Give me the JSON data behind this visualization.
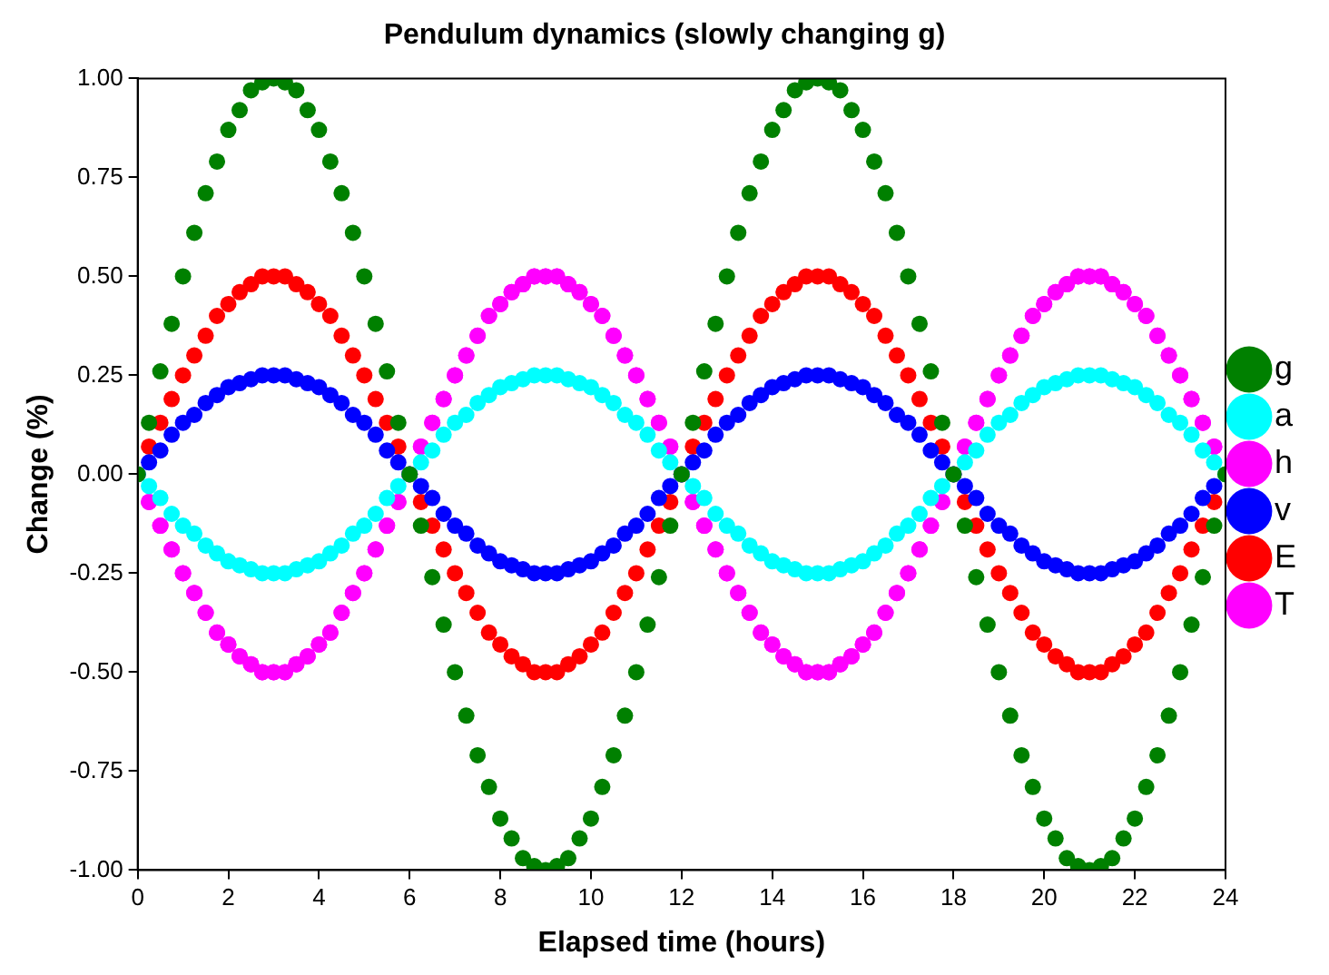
{
  "chart_data": {
    "type": "scatter",
    "title": "Pendulum dynamics (slowly changing g)",
    "xlabel": "Elapsed time (hours)",
    "ylabel": "Change (%)",
    "marker": "circle",
    "legend": "right",
    "xlim": [
      0,
      24
    ],
    "xticks": [
      0,
      2,
      4,
      6,
      8,
      10,
      12,
      14,
      16,
      18,
      20,
      22,
      24
    ],
    "ylim": [
      -1,
      1
    ],
    "yticks": [
      {
        "value": -1,
        "label": "-1.00"
      },
      {
        "value": -0.75,
        "label": "-0.75"
      },
      {
        "value": -0.5,
        "label": "-0.50"
      },
      {
        "value": -0.25,
        "label": "-0.25"
      },
      {
        "value": 0,
        "label": "0.00"
      },
      {
        "value": 0.25,
        "label": "0.25"
      },
      {
        "value": 0.5,
        "label": "0.50"
      },
      {
        "value": 0.75,
        "label": "0.75"
      },
      {
        "value": 1,
        "label": "1.00"
      }
    ],
    "x": [
      0,
      0.25,
      0.5,
      0.75,
      1,
      1.25,
      1.5,
      1.75,
      2,
      2.25,
      2.5,
      2.75,
      3,
      3.25,
      3.5,
      3.75,
      4,
      4.25,
      4.5,
      4.75,
      5,
      5.25,
      5.5,
      5.75,
      6,
      6.25,
      6.5,
      6.75,
      7,
      7.25,
      7.5,
      7.75,
      8,
      8.25,
      8.5,
      8.75,
      9,
      9.25,
      9.5,
      9.75,
      10,
      10.25,
      10.5,
      10.75,
      11,
      11.25,
      11.5,
      11.75,
      12,
      12.25,
      12.5,
      12.75,
      13,
      13.25,
      13.5,
      13.75,
      14,
      14.25,
      14.5,
      14.75,
      15,
      15.25,
      15.5,
      15.75,
      16,
      16.25,
      16.5,
      16.75,
      17,
      17.25,
      17.5,
      17.75,
      18,
      18.25,
      18.5,
      18.75,
      19,
      19.25,
      19.5,
      19.75,
      20,
      20.25,
      20.5,
      20.75,
      21,
      21.25,
      21.5,
      21.75,
      22,
      22.25,
      22.5,
      22.75,
      23,
      23.25,
      23.5,
      23.75,
      24
    ],
    "series": [
      {
        "name": "g",
        "color": "#008000",
        "values": [
          0,
          0.13,
          0.26,
          0.38,
          0.5,
          0.61,
          0.71,
          0.79,
          0.87,
          0.92,
          0.97,
          0.99,
          1,
          0.99,
          0.97,
          0.92,
          0.87,
          0.79,
          0.71,
          0.61,
          0.5,
          0.38,
          0.26,
          0.13,
          0,
          -0.13,
          -0.26,
          -0.38,
          -0.5,
          -0.61,
          -0.71,
          -0.79,
          -0.87,
          -0.92,
          -0.97,
          -0.99,
          -1,
          -0.99,
          -0.97,
          -0.92,
          -0.87,
          -0.79,
          -0.71,
          -0.61,
          -0.5,
          -0.38,
          -0.26,
          -0.13,
          0,
          0.13,
          0.26,
          0.38,
          0.5,
          0.61,
          0.71,
          0.79,
          0.87,
          0.92,
          0.97,
          0.99,
          1,
          0.99,
          0.97,
          0.92,
          0.87,
          0.79,
          0.71,
          0.61,
          0.5,
          0.38,
          0.26,
          0.13,
          0,
          -0.13,
          -0.26,
          -0.38,
          -0.5,
          -0.61,
          -0.71,
          -0.79,
          -0.87,
          -0.92,
          -0.97,
          -0.99,
          -1,
          -0.99,
          -0.97,
          -0.92,
          -0.87,
          -0.79,
          -0.71,
          -0.61,
          -0.5,
          -0.38,
          -0.26,
          -0.13,
          0
        ]
      },
      {
        "name": "a",
        "color": "#00ffff",
        "values": [
          0,
          -0.03,
          -0.06,
          -0.1,
          -0.13,
          -0.15,
          -0.18,
          -0.2,
          -0.22,
          -0.23,
          -0.24,
          -0.25,
          -0.25,
          -0.25,
          -0.24,
          -0.23,
          -0.22,
          -0.2,
          -0.18,
          -0.15,
          -0.13,
          -0.1,
          -0.06,
          -0.03,
          0,
          0.03,
          0.06,
          0.1,
          0.13,
          0.15,
          0.18,
          0.2,
          0.22,
          0.23,
          0.24,
          0.25,
          0.25,
          0.25,
          0.24,
          0.23,
          0.22,
          0.2,
          0.18,
          0.15,
          0.13,
          0.1,
          0.06,
          0.03,
          0,
          -0.03,
          -0.06,
          -0.1,
          -0.13,
          -0.15,
          -0.18,
          -0.2,
          -0.22,
          -0.23,
          -0.24,
          -0.25,
          -0.25,
          -0.25,
          -0.24,
          -0.23,
          -0.22,
          -0.2,
          -0.18,
          -0.15,
          -0.13,
          -0.1,
          -0.06,
          -0.03,
          0,
          0.03,
          0.06,
          0.1,
          0.13,
          0.15,
          0.18,
          0.2,
          0.22,
          0.23,
          0.24,
          0.25,
          0.25,
          0.25,
          0.24,
          0.23,
          0.22,
          0.2,
          0.18,
          0.15,
          0.13,
          0.1,
          0.06,
          0.03,
          0
        ]
      },
      {
        "name": "h",
        "color": "#ff00ff",
        "values": [
          null,
          -0.07,
          -0.13,
          -0.19,
          -0.25,
          -0.3,
          -0.35,
          -0.4,
          -0.43,
          -0.46,
          -0.48,
          -0.5,
          -0.5,
          -0.5,
          -0.48,
          -0.46,
          -0.43,
          -0.4,
          -0.35,
          -0.3,
          -0.25,
          -0.19,
          -0.13,
          -0.07,
          0,
          0.07,
          0.13,
          0.19,
          0.25,
          0.3,
          0.35,
          0.4,
          0.43,
          0.46,
          0.48,
          0.5,
          0.5,
          0.5,
          0.48,
          0.46,
          0.43,
          0.4,
          0.35,
          0.3,
          0.25,
          0.19,
          0.13,
          0.07,
          0,
          -0.07,
          -0.13,
          -0.19,
          -0.25,
          -0.3,
          -0.35,
          -0.4,
          -0.43,
          -0.46,
          -0.48,
          -0.5,
          -0.5,
          -0.5,
          -0.48,
          -0.46,
          -0.43,
          -0.4,
          -0.35,
          -0.3,
          -0.25,
          -0.19,
          -0.13,
          -0.07,
          0,
          0.07,
          0.13,
          0.19,
          0.25,
          0.3,
          0.35,
          0.4,
          0.43,
          0.46,
          0.48,
          0.5,
          0.5,
          0.5,
          0.48,
          0.46,
          0.43,
          0.4,
          0.35,
          0.3,
          0.25,
          0.19,
          0.13,
          0.07,
          null
        ]
      },
      {
        "name": "v",
        "color": "#0000ff",
        "values": [
          0,
          0.03,
          0.06,
          0.1,
          0.13,
          0.15,
          0.18,
          0.2,
          0.22,
          0.23,
          0.24,
          0.25,
          0.25,
          0.25,
          0.24,
          0.23,
          0.22,
          0.2,
          0.18,
          0.15,
          0.13,
          0.1,
          0.06,
          0.03,
          0,
          -0.03,
          -0.06,
          -0.1,
          -0.13,
          -0.15,
          -0.18,
          -0.2,
          -0.22,
          -0.23,
          -0.24,
          -0.25,
          -0.25,
          -0.25,
          -0.24,
          -0.23,
          -0.22,
          -0.2,
          -0.18,
          -0.15,
          -0.13,
          -0.1,
          -0.06,
          -0.03,
          0,
          0.03,
          0.06,
          0.1,
          0.13,
          0.15,
          0.18,
          0.2,
          0.22,
          0.23,
          0.24,
          0.25,
          0.25,
          0.25,
          0.24,
          0.23,
          0.22,
          0.2,
          0.18,
          0.15,
          0.13,
          0.1,
          0.06,
          0.03,
          0,
          -0.03,
          -0.06,
          -0.1,
          -0.13,
          -0.15,
          -0.18,
          -0.2,
          -0.22,
          -0.23,
          -0.24,
          -0.25,
          -0.25,
          -0.25,
          -0.24,
          -0.23,
          -0.22,
          -0.2,
          -0.18,
          -0.15,
          -0.13,
          -0.1,
          -0.06,
          -0.03,
          null
        ]
      },
      {
        "name": "E",
        "color": "#ff0000",
        "values": [
          null,
          0.07,
          0.13,
          0.19,
          0.25,
          0.3,
          0.35,
          0.4,
          0.43,
          0.46,
          0.48,
          0.5,
          0.5,
          0.5,
          0.48,
          0.46,
          0.43,
          0.4,
          0.35,
          0.3,
          0.25,
          0.19,
          0.13,
          0.07,
          0,
          -0.07,
          -0.13,
          -0.19,
          -0.25,
          -0.3,
          -0.35,
          -0.4,
          -0.43,
          -0.46,
          -0.48,
          -0.5,
          -0.5,
          -0.5,
          -0.48,
          -0.46,
          -0.43,
          -0.4,
          -0.35,
          -0.3,
          -0.25,
          -0.19,
          -0.13,
          -0.07,
          0,
          0.07,
          0.13,
          0.19,
          0.25,
          0.3,
          0.35,
          0.4,
          0.43,
          0.46,
          0.48,
          0.5,
          0.5,
          0.5,
          0.48,
          0.46,
          0.43,
          0.4,
          0.35,
          0.3,
          0.25,
          0.19,
          0.13,
          0.07,
          0,
          -0.07,
          -0.13,
          -0.19,
          -0.25,
          -0.3,
          -0.35,
          -0.4,
          -0.43,
          -0.46,
          -0.48,
          -0.5,
          -0.5,
          -0.5,
          -0.48,
          -0.46,
          -0.43,
          -0.4,
          -0.35,
          -0.3,
          -0.25,
          -0.19,
          -0.13,
          -0.07,
          null
        ]
      },
      {
        "name": "T",
        "color": "#ff00ff",
        "values": [
          0,
          -0.07,
          -0.13,
          -0.19,
          -0.25,
          -0.3,
          -0.35,
          -0.4,
          -0.43,
          -0.46,
          -0.48,
          -0.5,
          -0.5,
          -0.5,
          -0.48,
          -0.46,
          -0.43,
          -0.4,
          -0.35,
          -0.3,
          -0.25,
          -0.19,
          -0.13,
          -0.07,
          0,
          0.07,
          0.13,
          0.19,
          0.25,
          0.3,
          0.35,
          0.4,
          0.43,
          0.46,
          0.48,
          0.5,
          0.5,
          0.5,
          0.48,
          0.46,
          0.43,
          0.4,
          0.35,
          0.3,
          0.25,
          0.19,
          0.13,
          0.07,
          0,
          -0.07,
          -0.13,
          -0.19,
          -0.25,
          -0.3,
          -0.35,
          -0.4,
          -0.43,
          -0.46,
          -0.48,
          -0.5,
          -0.5,
          -0.5,
          -0.48,
          -0.46,
          -0.43,
          -0.4,
          -0.35,
          -0.3,
          -0.25,
          -0.19,
          -0.13,
          -0.07,
          0,
          0.07,
          0.13,
          0.19,
          0.25,
          0.3,
          0.35,
          0.4,
          0.43,
          0.46,
          0.48,
          0.5,
          0.5,
          0.5,
          0.48,
          0.46,
          0.43,
          0.4,
          0.35,
          0.3,
          0.25,
          0.19,
          0.13,
          0.07,
          null
        ]
      }
    ]
  }
}
